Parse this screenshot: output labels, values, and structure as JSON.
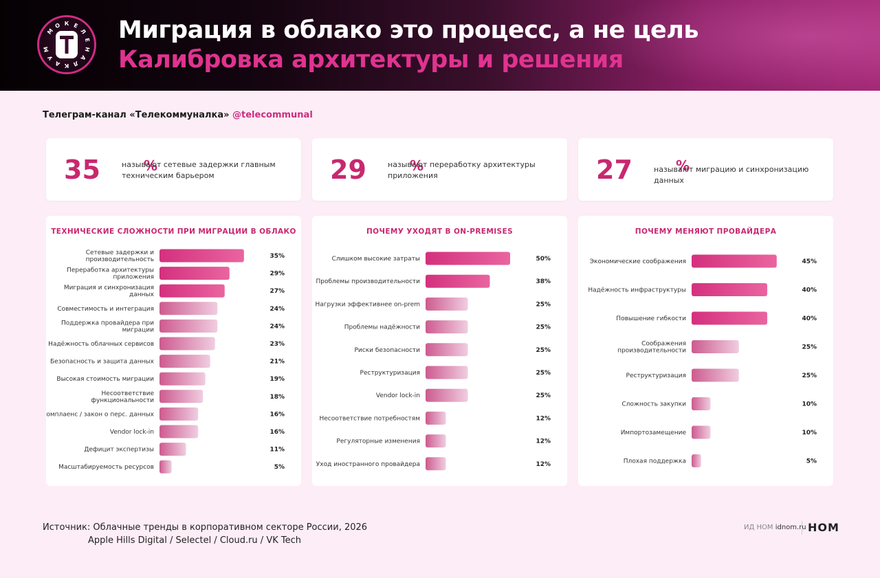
{
  "header": {
    "title": "Миграция в облако это процесс, а не цель",
    "subtitle": "Калибровка архитектуры и решения",
    "logo_letters": "МОКЕЛЕНАЛКАУМ",
    "logo_main": "Т"
  },
  "channel": {
    "label": "Телеграм-канал «Телекоммуналка»",
    "handle": "@telecommunal"
  },
  "stats": [
    {
      "value": "35",
      "unit": "%",
      "text": "называют сетевые задержки главным техническим барьером"
    },
    {
      "value": "29",
      "unit": "%",
      "text": "называют переработку архитектуры приложения"
    },
    {
      "value": "27",
      "unit": "%",
      "text": "называют миграцию и синхронизацию данных"
    }
  ],
  "colors": {
    "accent": "#c8286f",
    "bar_strong_start": "#d4307e",
    "bar_strong_end": "#e9659f",
    "bar_light_start": "#cd5b8f",
    "bar_light_end": "#f0cde0"
  },
  "chart_data": [
    {
      "type": "bar",
      "orientation": "horizontal",
      "title": "ТЕХНИЧЕСКИЕ СЛОЖНОСТИ ПРИ МИГРАЦИИ В ОБЛАКО",
      "categories": [
        "Сетевые задержки и|производительность",
        "Переработка архитектуры|приложения",
        "Миграция и синхронизация|данных",
        "Совместимость и интеграция",
        "Поддержка провайдера при|миграции",
        "Надёжность облачных сервисов",
        "Безопасность и защита данных",
        "Высокая стоимость миграции",
        "Несоответствие|функциональности",
        "Комплаенс / закон о перс. данных",
        "Vendor lock-in",
        "Дефицит экспертизы",
        "Масштабируемость ресурсов"
      ],
      "values": [
        35,
        29,
        27,
        24,
        24,
        23,
        21,
        19,
        18,
        16,
        16,
        11,
        5
      ],
      "labels": [
        "35%",
        "29%",
        "27%",
        "24%",
        "24%",
        "23%",
        "21%",
        "19%",
        "18%",
        "16%",
        "16%",
        "11%",
        "5%"
      ],
      "strong_count": 3
    },
    {
      "type": "bar",
      "orientation": "horizontal",
      "title": "ПОЧЕМУ УХОДЯТ В ON-PREMISES",
      "categories": [
        "Слишком высокие затраты",
        "Проблемы производительности",
        "Нагрузки эффективнее on-prem",
        "Проблемы надёжности",
        "Риски безопасности",
        "Реструктуризация",
        "Vendor lock-in",
        "Несоответствие потребностям",
        "Регуляторные изменения",
        "Уход иностранного провайдера"
      ],
      "values": [
        50,
        38,
        25,
        25,
        25,
        25,
        25,
        12,
        12,
        12
      ],
      "labels": [
        "50%",
        "38%",
        "25%",
        "25%",
        "25%",
        "25%",
        "25%",
        "12%",
        "12%",
        "12%"
      ],
      "strong_count": 2
    },
    {
      "type": "bar",
      "orientation": "horizontal",
      "title": "ПОЧЕМУ МЕНЯЮТ ПРОВАЙДЕРА",
      "categories": [
        "Экономические соображения",
        "Надёжность инфраструктуры",
        "Повышение гибкости",
        "Соображения|производительности",
        "Реструктуризация",
        "Сложность закупки",
        "Импортозамещение",
        "Плохая поддержка"
      ],
      "values": [
        45,
        40,
        40,
        25,
        25,
        10,
        10,
        5
      ],
      "labels": [
        "45%",
        "40%",
        "40%",
        "25%",
        "25%",
        "10%",
        "10%",
        "5%"
      ],
      "strong_count": 3
    }
  ],
  "footer": {
    "source": "Источник: Облачные тренды в корпоративном секторе России, 2026",
    "authors": "Apple Hills Digital / Selectel / Cloud.ru / VK Tech",
    "brand_prefix": "ИД НОМ",
    "brand_site": "idnom.ru",
    "brand_logo": "НОМ"
  }
}
